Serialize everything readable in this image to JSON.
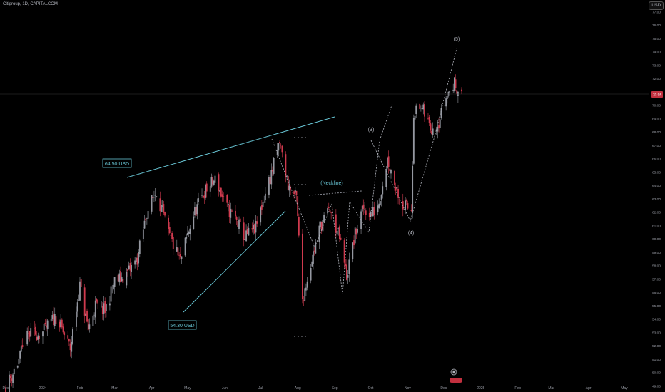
{
  "header": {
    "symbol": "Citigroup, 1D, CAPITALCOM",
    "currency": "USD"
  },
  "price_axis": {
    "ticks": [
      "77.00",
      "76.00",
      "75.00",
      "74.00",
      "73.00",
      "72.00",
      "71.00",
      "70.00",
      "69.00",
      "68.00",
      "67.00",
      "66.00",
      "65.00",
      "64.00",
      "63.00",
      "62.00",
      "61.00",
      "60.00",
      "59.00",
      "58.00",
      "57.00",
      "56.00",
      "55.00",
      "54.00",
      "53.00",
      "52.00",
      "51.00",
      "50.00",
      "49.00"
    ],
    "last_price": "70.95"
  },
  "time_axis": {
    "ticks": [
      "Dec",
      "2024",
      "Feb",
      "Mar",
      "Apr",
      "May",
      "Jun",
      "Jul",
      "Aug",
      "Sep",
      "Oct",
      "Nov",
      "Dec",
      "2025",
      "Feb",
      "Mar",
      "Apr",
      "May"
    ]
  },
  "annotations": {
    "upper_label": "64.50 USD",
    "lower_label": "54.30 USD",
    "neckline": "(Neckline)",
    "wave3": "(3)",
    "wave4": "(4)",
    "wave5": "(5)"
  },
  "colors": {
    "up": "#9598a1",
    "down": "#d03a4e",
    "trendline": "#66c2d1",
    "background": "#000000",
    "last_price_badge": "#c2303f"
  },
  "chart_data": {
    "type": "candlestick",
    "title": "Citigroup, 1D, CAPITALCOM",
    "ylim": [
      48.8,
      77.6
    ],
    "price_path": [
      [
        "2023-12-01",
        48.9
      ],
      [
        "2023-12-10",
        50.5
      ],
      [
        "2023-12-20",
        52.8
      ],
      [
        "2024-01-01",
        53.0
      ],
      [
        "2024-01-12",
        54.2
      ],
      [
        "2024-01-24",
        51.8
      ],
      [
        "2024-02-01",
        56.5
      ],
      [
        "2024-02-08",
        53.2
      ],
      [
        "2024-02-14",
        55.0
      ],
      [
        "2024-02-22",
        54.6
      ],
      [
        "2024-03-01",
        56.8
      ],
      [
        "2024-03-10",
        57.2
      ],
      [
        "2024-03-20",
        58.5
      ],
      [
        "2024-03-28",
        62.0
      ],
      [
        "2024-04-05",
        63.6
      ],
      [
        "2024-04-15",
        60.3
      ],
      [
        "2024-04-25",
        58.3
      ],
      [
        "2024-05-05",
        61.6
      ],
      [
        "2024-05-15",
        63.5
      ],
      [
        "2024-05-25",
        64.5
      ],
      [
        "2024-06-01",
        62.5
      ],
      [
        "2024-06-10",
        61.5
      ],
      [
        "2024-06-18",
        60.1
      ],
      [
        "2024-06-27",
        60.8
      ],
      [
        "2024-07-03",
        62.8
      ],
      [
        "2024-07-11",
        65.2
      ],
      [
        "2024-07-17",
        67.2
      ],
      [
        "2024-07-24",
        64.0
      ],
      [
        "2024-07-31",
        63.0
      ],
      [
        "2024-08-05",
        55.5
      ],
      [
        "2024-08-12",
        58.2
      ],
      [
        "2024-08-20",
        61.0
      ],
      [
        "2024-08-28",
        62.2
      ],
      [
        "2024-09-05",
        60.0
      ],
      [
        "2024-09-11",
        57.2
      ],
      [
        "2024-09-18",
        60.3
      ],
      [
        "2024-09-25",
        62.3
      ],
      [
        "2024-10-02",
        61.8
      ],
      [
        "2024-10-08",
        62.8
      ],
      [
        "2024-10-15",
        66.0
      ],
      [
        "2024-10-21",
        64.2
      ],
      [
        "2024-10-28",
        62.5
      ],
      [
        "2024-11-04",
        62.2
      ],
      [
        "2024-11-06",
        69.5
      ],
      [
        "2024-11-13",
        69.7
      ],
      [
        "2024-11-20",
        68.3
      ],
      [
        "2024-11-27",
        68.8
      ],
      [
        "2024-12-04",
        70.8
      ],
      [
        "2024-12-10",
        71.6
      ],
      [
        "2024-12-16",
        70.95
      ]
    ],
    "levels": [
      64.5,
      54.3
    ],
    "last_price": 70.95
  }
}
